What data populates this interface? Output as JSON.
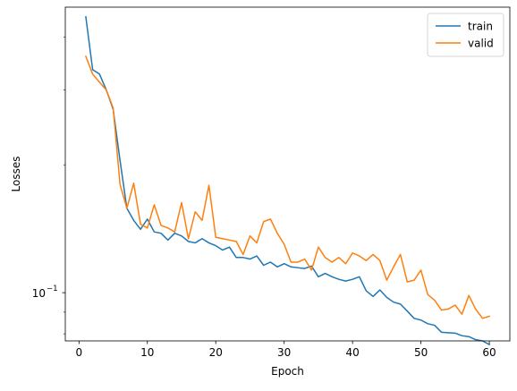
{
  "chart_data": {
    "type": "line",
    "title": "",
    "xlabel": "Epoch",
    "ylabel": "Losses",
    "x_ticks": [
      0,
      10,
      20,
      30,
      40,
      50,
      60
    ],
    "xlim": [
      -2.0,
      63.0
    ],
    "yscale": "log",
    "ylim": [
      0.077,
      0.47
    ],
    "y_ticks": [
      0.1
    ],
    "y_tick_labels": [
      {
        "base": "10",
        "exp": "−1"
      }
    ],
    "y_minor_ticks": [
      0.08,
      0.09,
      0.2,
      0.3,
      0.4
    ],
    "grid": false,
    "legend_position": "top-right",
    "x": [
      1,
      2,
      3,
      4,
      5,
      6,
      7,
      8,
      9,
      10,
      11,
      12,
      13,
      14,
      15,
      16,
      17,
      18,
      19,
      20,
      21,
      22,
      23,
      24,
      25,
      26,
      27,
      28,
      29,
      30,
      31,
      32,
      33,
      34,
      35,
      36,
      37,
      38,
      39,
      40,
      41,
      42,
      43,
      44,
      45,
      46,
      47,
      48,
      49,
      50,
      51,
      52,
      53,
      54,
      55,
      56,
      57,
      58,
      59,
      60
    ],
    "series": [
      {
        "name": "train",
        "color": "#1f77b4",
        "values": [
          0.446,
          0.335,
          0.327,
          0.3,
          0.27,
          0.205,
          0.158,
          0.148,
          0.141,
          0.149,
          0.139,
          0.138,
          0.133,
          0.138,
          0.136,
          0.132,
          0.131,
          0.134,
          0.131,
          0.129,
          0.126,
          0.128,
          0.121,
          0.121,
          0.12,
          0.122,
          0.116,
          0.118,
          0.115,
          0.117,
          0.115,
          0.1145,
          0.114,
          0.1155,
          0.109,
          0.111,
          0.109,
          0.1075,
          0.1065,
          0.1075,
          0.109,
          0.101,
          0.098,
          0.1015,
          0.0975,
          0.095,
          0.094,
          0.0905,
          0.087,
          0.0862,
          0.0845,
          0.0838,
          0.0807,
          0.0805,
          0.0803,
          0.0792,
          0.0788,
          0.0775,
          0.077,
          0.0755
        ]
      },
      {
        "name": "valid",
        "color": "#ff7f0e",
        "values": [
          0.36,
          0.327,
          0.313,
          0.3,
          0.272,
          0.18,
          0.158,
          0.181,
          0.145,
          0.142,
          0.161,
          0.144,
          0.142,
          0.139,
          0.163,
          0.134,
          0.155,
          0.148,
          0.179,
          0.135,
          0.134,
          0.133,
          0.132,
          0.123,
          0.136,
          0.131,
          0.147,
          0.149,
          0.138,
          0.13,
          0.118,
          0.118,
          0.12,
          0.113,
          0.128,
          0.121,
          0.118,
          0.121,
          0.117,
          0.124,
          0.122,
          0.119,
          0.123,
          0.119,
          0.107,
          0.115,
          0.123,
          0.106,
          0.107,
          0.113,
          0.099,
          0.096,
          0.091,
          0.0915,
          0.0935,
          0.089,
          0.0985,
          0.0915,
          0.087,
          0.088
        ]
      }
    ]
  }
}
